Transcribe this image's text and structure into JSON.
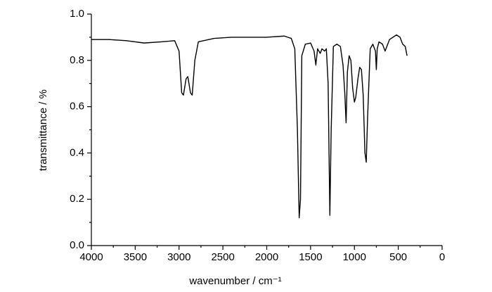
{
  "chart_data": {
    "type": "line",
    "xlabel": "wavenumber / cm⁻¹",
    "ylabel": "transmittance / %",
    "x": [
      4000,
      3800,
      3600,
      3400,
      3200,
      3050,
      3000,
      2970,
      2950,
      2920,
      2900,
      2870,
      2850,
      2820,
      2780,
      2600,
      2400,
      2200,
      2000,
      1800,
      1720,
      1680,
      1650,
      1630,
      1615,
      1600,
      1560,
      1500,
      1460,
      1440,
      1420,
      1390,
      1370,
      1340,
      1320,
      1300,
      1280,
      1265,
      1240,
      1200,
      1160,
      1130,
      1110,
      1095,
      1080,
      1060,
      1040,
      1020,
      1000,
      985,
      960,
      940,
      920,
      900,
      880,
      865,
      850,
      820,
      790,
      760,
      750,
      740,
      720,
      680,
      650,
      600,
      520,
      480,
      450,
      420,
      400
    ],
    "series": [
      {
        "name": "spectrum",
        "color": "#000000",
        "values": [
          0.89,
          0.89,
          0.885,
          0.875,
          0.88,
          0.885,
          0.84,
          0.66,
          0.65,
          0.72,
          0.73,
          0.66,
          0.65,
          0.8,
          0.88,
          0.895,
          0.9,
          0.9,
          0.9,
          0.905,
          0.895,
          0.85,
          0.5,
          0.12,
          0.2,
          0.82,
          0.87,
          0.875,
          0.84,
          0.78,
          0.85,
          0.83,
          0.85,
          0.84,
          0.85,
          0.7,
          0.13,
          0.5,
          0.86,
          0.87,
          0.86,
          0.78,
          0.66,
          0.53,
          0.75,
          0.82,
          0.8,
          0.68,
          0.62,
          0.64,
          0.72,
          0.77,
          0.76,
          0.65,
          0.4,
          0.36,
          0.55,
          0.85,
          0.87,
          0.84,
          0.76,
          0.85,
          0.88,
          0.87,
          0.84,
          0.89,
          0.91,
          0.9,
          0.87,
          0.86,
          0.82
        ]
      }
    ],
    "xlim": [
      4000,
      0
    ],
    "xticks": [
      4000,
      3500,
      3000,
      2500,
      2000,
      1500,
      1000,
      500,
      0
    ],
    "ylim": [
      0,
      1
    ],
    "yticks": [
      {
        "value": 0,
        "label": "0.0"
      },
      {
        "value": 0.2,
        "label": "0.2"
      },
      {
        "value": 0.4,
        "label": "0.4"
      },
      {
        "value": 0.6,
        "label": "0.6"
      },
      {
        "value": 0.8,
        "label": "0.8"
      },
      {
        "value": 1,
        "label": "1.0"
      }
    ],
    "grid": false
  }
}
